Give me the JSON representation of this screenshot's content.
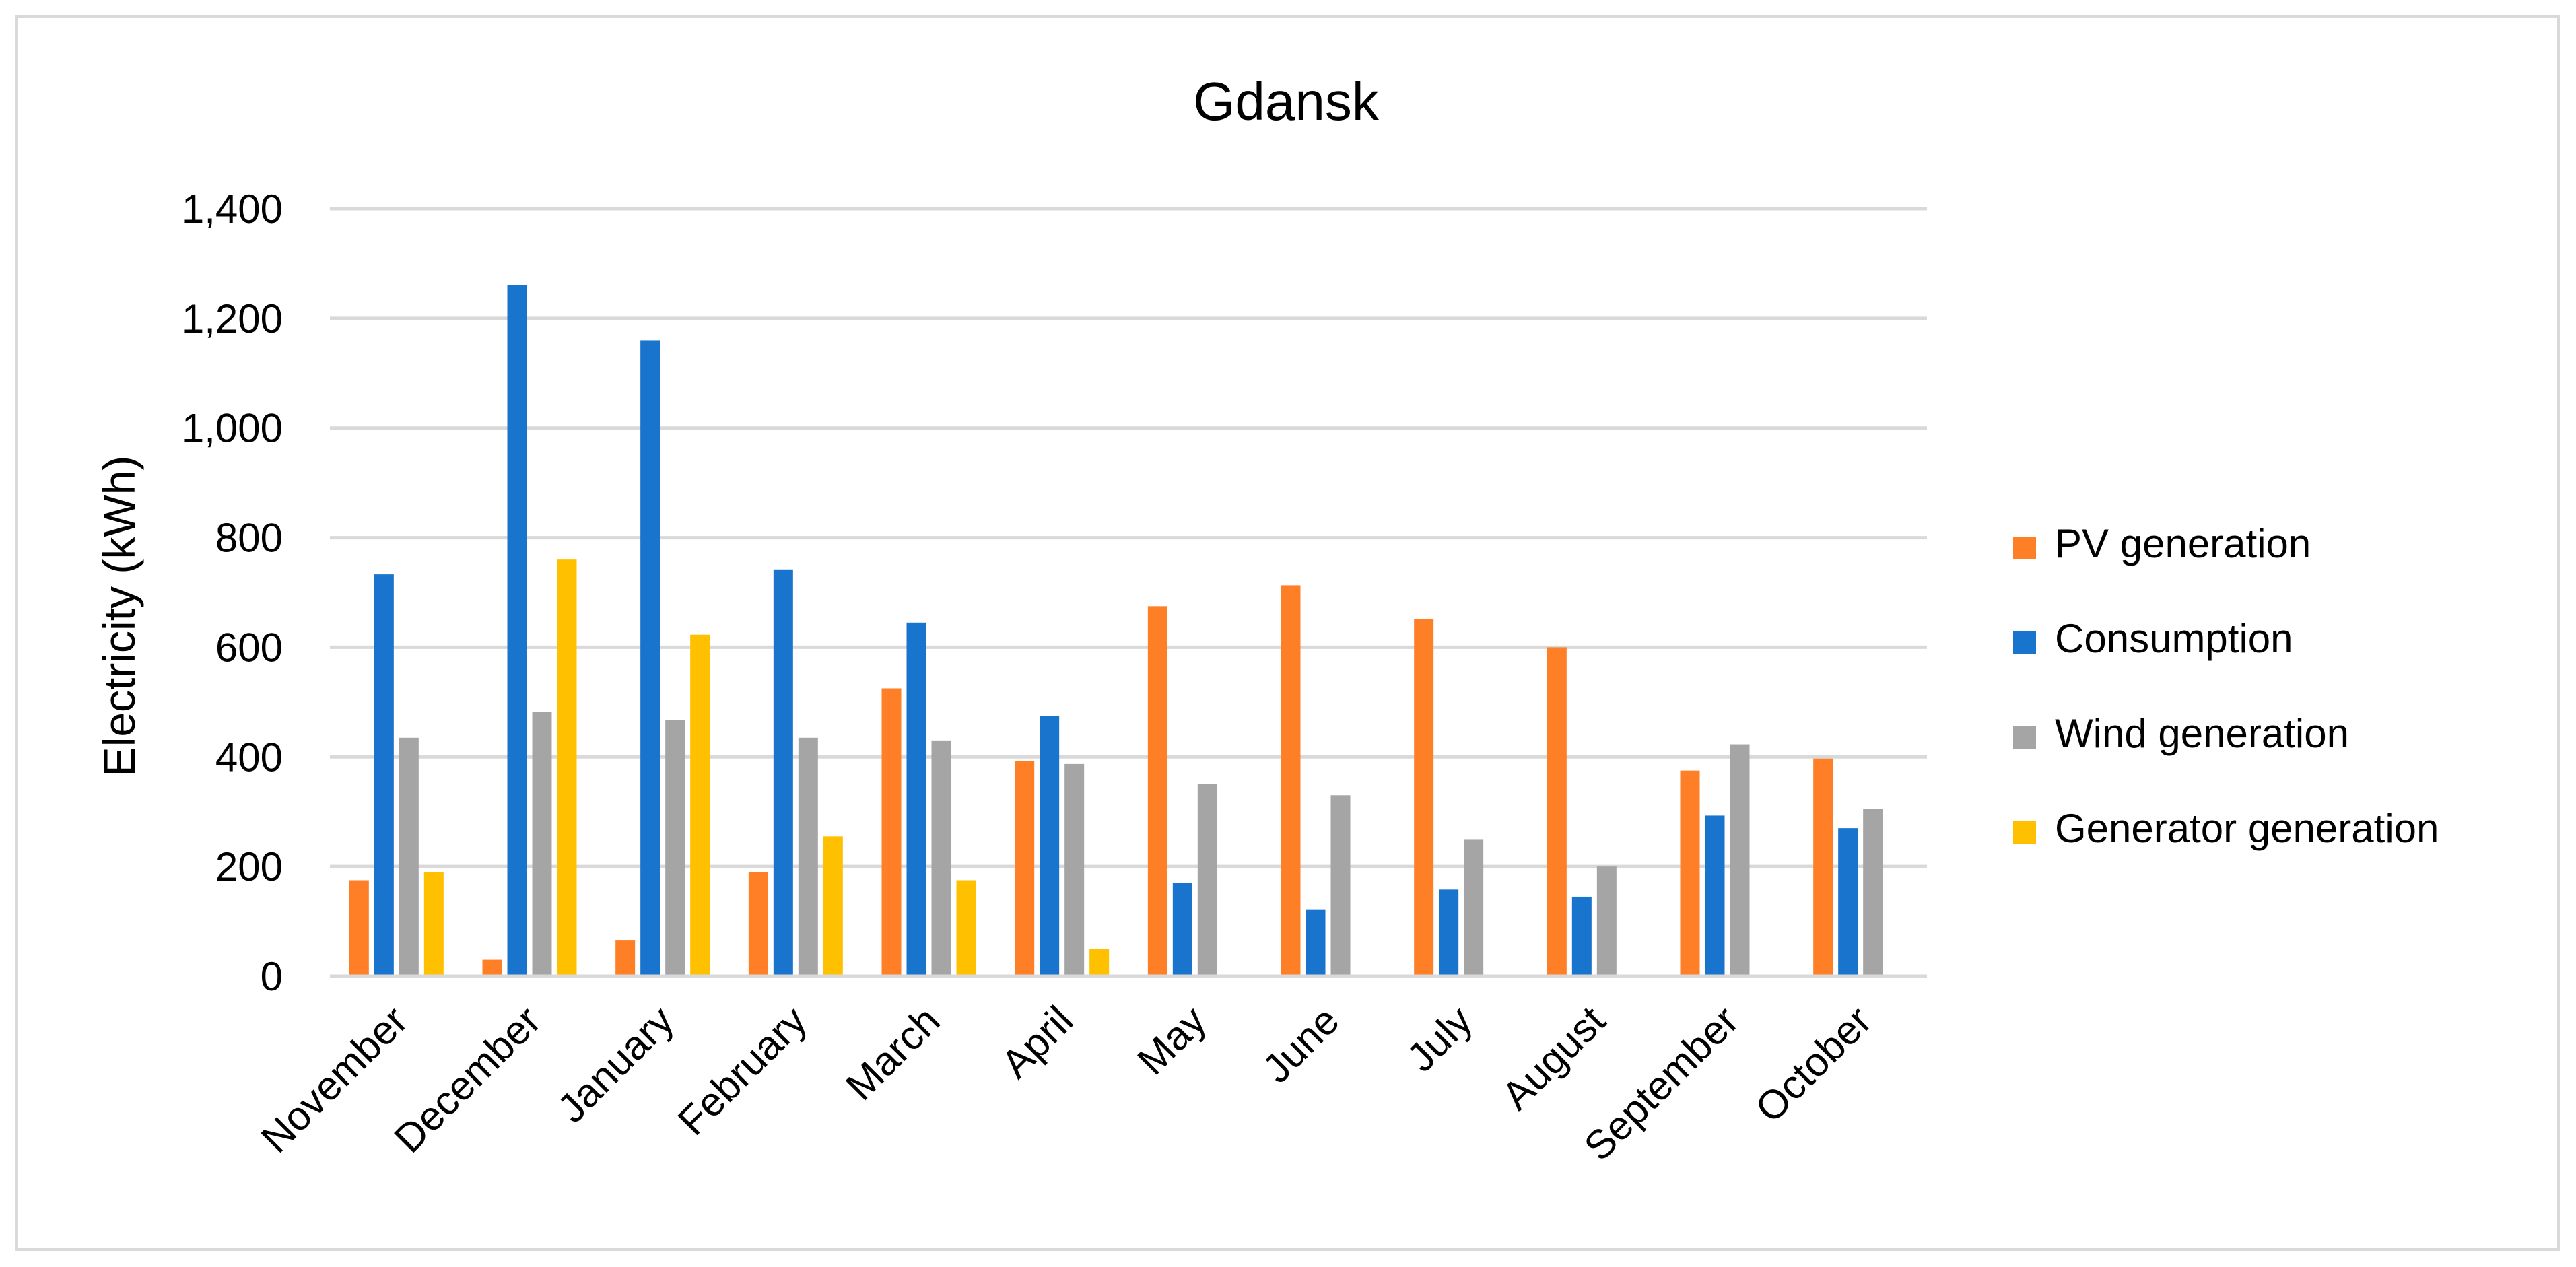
{
  "chart_data": {
    "type": "bar",
    "title": "Gdansk",
    "xlabel": "",
    "ylabel": "Electricity (kWh)",
    "ylim": [
      0,
      1400
    ],
    "yticks": [
      0,
      200,
      400,
      600,
      800,
      1000,
      1200,
      1400
    ],
    "ytick_labels": [
      "0",
      "200",
      "400",
      "600",
      "800",
      "1,000",
      "1,200",
      "1,400"
    ],
    "grid": true,
    "legend_position": "right",
    "categories": [
      "November",
      "December",
      "January",
      "February",
      "March",
      "April",
      "May",
      "June",
      "July",
      "August",
      "September",
      "October"
    ],
    "series": [
      {
        "name": "PV generation",
        "color": "#FF7F27",
        "values": [
          175,
          30,
          65,
          190,
          525,
          393,
          675,
          713,
          652,
          600,
          375,
          397
        ]
      },
      {
        "name": "Consumption",
        "color": "#1874CD",
        "values": [
          733,
          1260,
          1160,
          742,
          645,
          475,
          170,
          122,
          158,
          145,
          293,
          270
        ]
      },
      {
        "name": "Wind generation",
        "color": "#A5A5A5",
        "values": [
          435,
          482,
          467,
          435,
          430,
          387,
          350,
          330,
          250,
          200,
          423,
          305
        ]
      },
      {
        "name": "Generator generation",
        "color": "#FFC000",
        "values": [
          190,
          760,
          623,
          255,
          175,
          50,
          0,
          0,
          0,
          0,
          0,
          0
        ]
      }
    ]
  }
}
